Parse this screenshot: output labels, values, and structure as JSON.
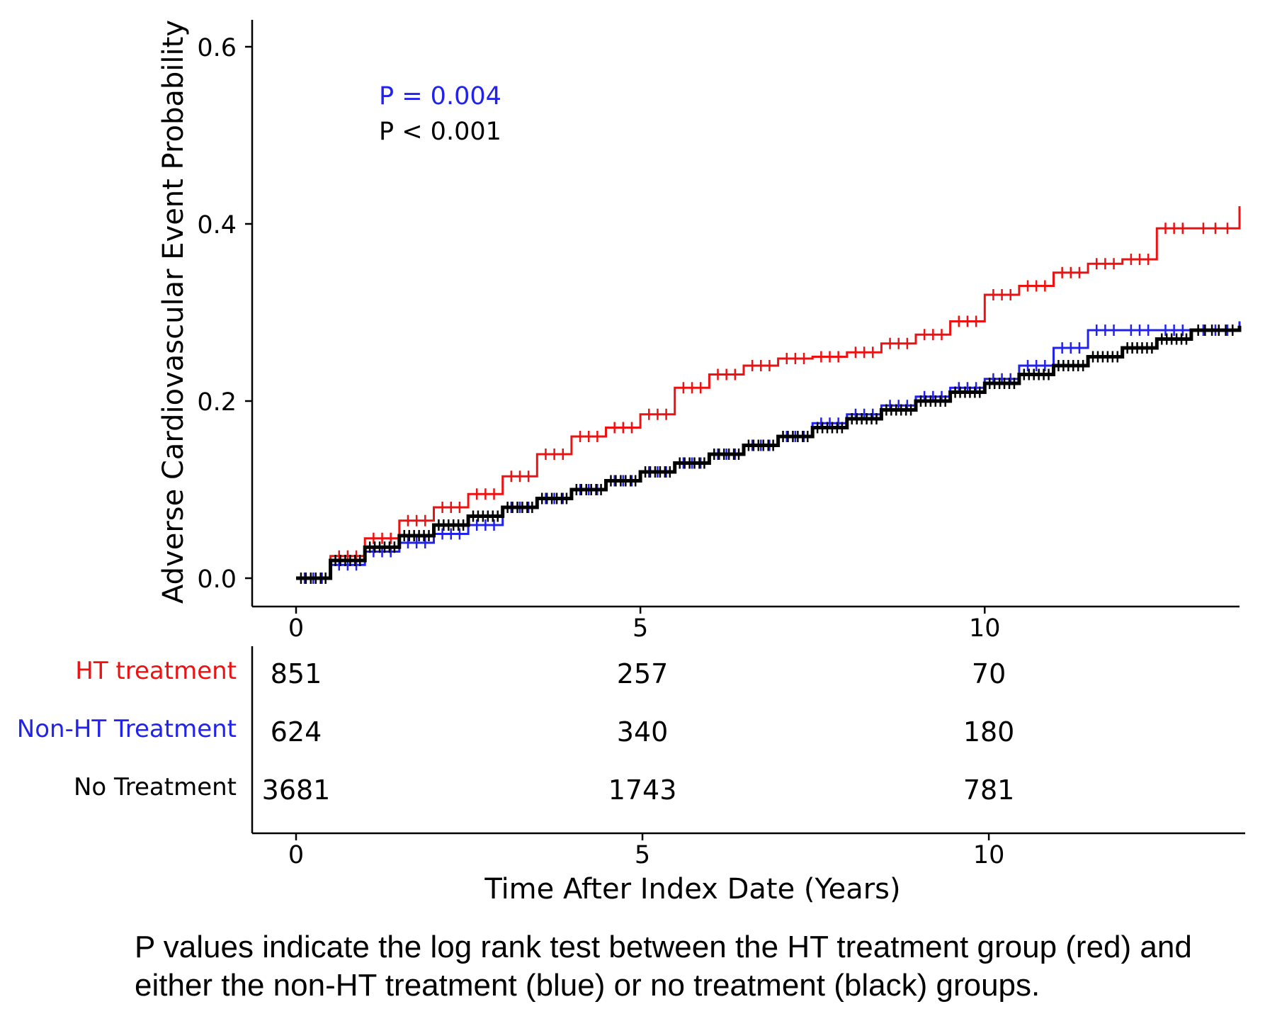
{
  "chart_data": [
    {
      "type": "line",
      "ylabel": "Adverse Cardiovascular Event Probability",
      "xlim": [
        0,
        13.7
      ],
      "ylim": [
        0,
        0.6
      ],
      "x_ticks": [
        "0",
        "5",
        "10"
      ],
      "y_ticks": [
        "0.0",
        "0.2",
        "0.4",
        "0.6"
      ],
      "annotations": [
        {
          "text": "P = 0.004",
          "color": "#2222ee"
        },
        {
          "text": "P < 0.001",
          "color": "#000000"
        }
      ],
      "series": [
        {
          "color": "#ee1111",
          "x": [
            0,
            0.5,
            1,
            1.5,
            2,
            2.5,
            3,
            3.5,
            4,
            4.5,
            5,
            5.5,
            6,
            6.5,
            7,
            7.5,
            8,
            8.5,
            9,
            9.5,
            10,
            10.5,
            11,
            11.5,
            12,
            12.5,
            13,
            13.7
          ],
          "y": [
            0,
            0.025,
            0.045,
            0.065,
            0.08,
            0.095,
            0.115,
            0.14,
            0.16,
            0.17,
            0.185,
            0.215,
            0.23,
            0.24,
            0.248,
            0.25,
            0.255,
            0.265,
            0.275,
            0.29,
            0.32,
            0.33,
            0.345,
            0.355,
            0.36,
            0.395,
            0.395,
            0.42
          ]
        },
        {
          "color": "#2222ee",
          "x": [
            0,
            0.5,
            1,
            1.5,
            2,
            2.5,
            3,
            3.5,
            4,
            4.5,
            5,
            5.5,
            6,
            6.5,
            7,
            7.5,
            8,
            8.5,
            9,
            9.5,
            10,
            10.5,
            11,
            11.5,
            12,
            12.5,
            13,
            13.7
          ],
          "y": [
            0,
            0.015,
            0.03,
            0.04,
            0.05,
            0.06,
            0.08,
            0.09,
            0.1,
            0.11,
            0.12,
            0.13,
            0.14,
            0.15,
            0.16,
            0.175,
            0.185,
            0.195,
            0.205,
            0.215,
            0.225,
            0.24,
            0.26,
            0.28,
            0.28,
            0.28,
            0.28,
            0.29
          ]
        },
        {
          "color": "#000000",
          "x": [
            0,
            0.5,
            1,
            1.5,
            2,
            2.5,
            3,
            3.5,
            4,
            4.5,
            5,
            5.5,
            6,
            6.5,
            7,
            7.5,
            8,
            8.5,
            9,
            9.5,
            10,
            10.5,
            11,
            11.5,
            12,
            12.5,
            13,
            13.7
          ],
          "y": [
            0,
            0.02,
            0.035,
            0.048,
            0.06,
            0.07,
            0.08,
            0.09,
            0.1,
            0.11,
            0.12,
            0.13,
            0.14,
            0.15,
            0.16,
            0.17,
            0.18,
            0.19,
            0.2,
            0.21,
            0.22,
            0.23,
            0.24,
            0.25,
            0.26,
            0.27,
            0.28,
            0.285
          ]
        }
      ]
    },
    {
      "type": "table",
      "xlabel": "Time After Index Date (Years)",
      "xlim": [
        0,
        13.7
      ],
      "x_ticks": [
        "0",
        "5",
        "10"
      ],
      "columns_x": [
        0,
        5,
        10
      ],
      "rows": [
        {
          "label": "HT treatment",
          "color": "#ee1111",
          "values": [
            "851",
            "257",
            "70"
          ]
        },
        {
          "label": "Non-HT Treatment",
          "color": "#2222ee",
          "values": [
            "624",
            "340",
            "180"
          ]
        },
        {
          "label": "No Treatment",
          "color": "#000000",
          "values": [
            "3681",
            "1743",
            "781"
          ]
        }
      ]
    }
  ],
  "caption": {
    "line1": "P values indicate the log rank test between the HT treatment group (red) and",
    "line2": "either the non-HT treatment (blue) or no treatment (black) groups."
  }
}
